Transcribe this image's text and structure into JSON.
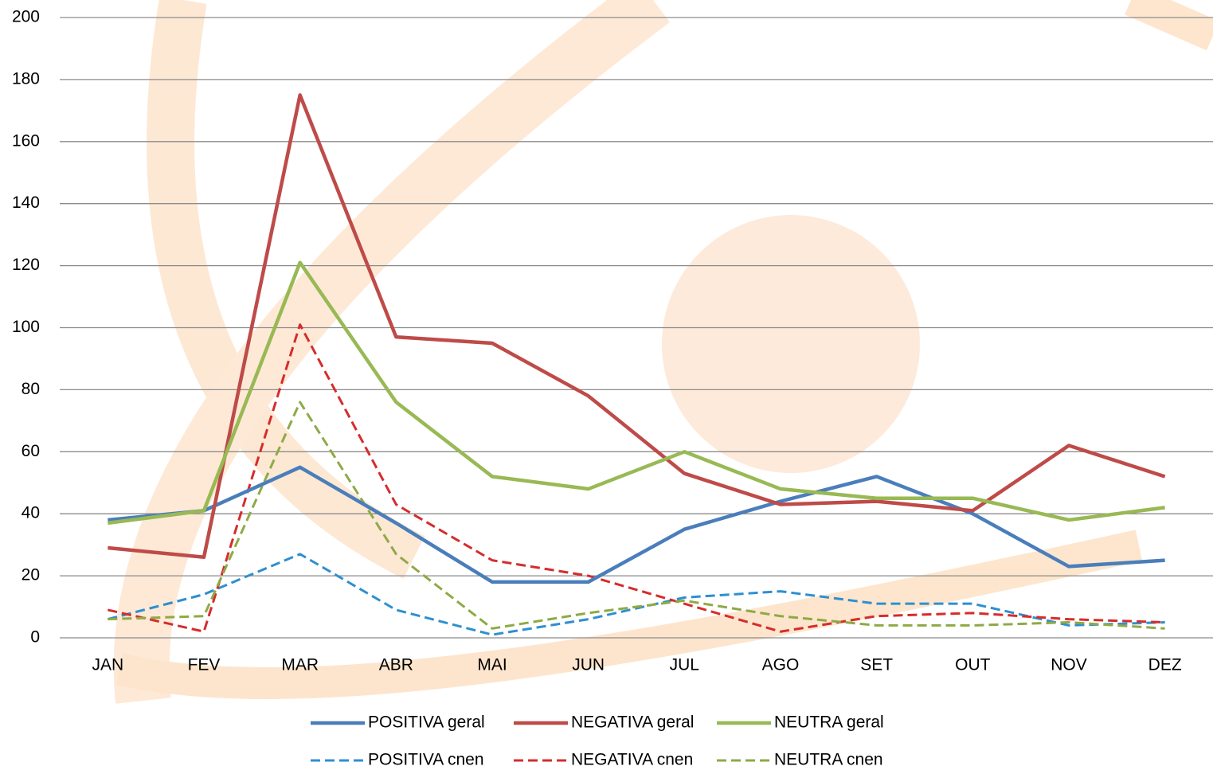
{
  "chart_data": {
    "type": "line",
    "categories": [
      "JAN",
      "FEV",
      "MAR",
      "ABR",
      "MAI",
      "JUN",
      "JUL",
      "AGO",
      "SET",
      "OUT",
      "NOV",
      "DEZ"
    ],
    "series": [
      {
        "name": "POSITIVA geral",
        "color": "#4a7ebb",
        "dashed": false,
        "values": [
          38,
          41,
          55,
          37,
          18,
          18,
          35,
          44,
          52,
          40,
          23,
          25
        ]
      },
      {
        "name": "NEGATIVA geral",
        "color": "#be4b48",
        "dashed": false,
        "values": [
          29,
          26,
          175,
          97,
          95,
          78,
          53,
          43,
          44,
          41,
          62,
          52
        ]
      },
      {
        "name": "NEUTRA geral",
        "color": "#98b954",
        "dashed": false,
        "values": [
          37,
          41,
          121,
          76,
          52,
          48,
          60,
          48,
          45,
          45,
          38,
          42
        ]
      },
      {
        "name": "POSITIVA cnen",
        "color": "#2e8fd0",
        "dashed": true,
        "values": [
          6,
          14,
          27,
          9,
          1,
          6,
          13,
          15,
          11,
          11,
          4,
          5
        ]
      },
      {
        "name": "NEGATIVA cnen",
        "color": "#d62c2c",
        "dashed": true,
        "values": [
          9,
          2,
          101,
          43,
          25,
          20,
          11,
          2,
          7,
          8,
          6,
          5
        ]
      },
      {
        "name": "NEUTRA cnen",
        "color": "#8eaa45",
        "dashed": true,
        "values": [
          6,
          7,
          76,
          27,
          3,
          8,
          12,
          7,
          4,
          4,
          5,
          3
        ]
      }
    ],
    "ylim": [
      0,
      200
    ],
    "yticks": [
      0,
      20,
      40,
      60,
      80,
      100,
      120,
      140,
      160,
      180,
      200
    ],
    "grid": true
  }
}
